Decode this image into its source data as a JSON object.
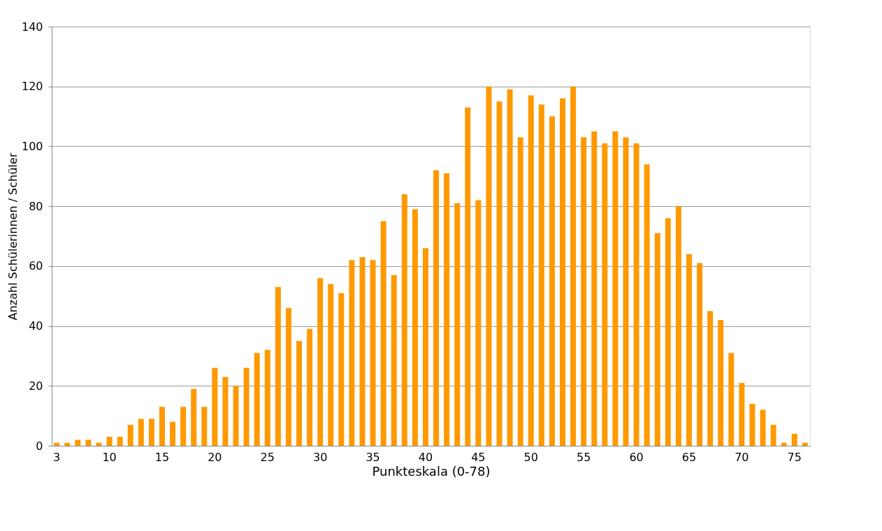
{
  "chart_data": {
    "type": "bar",
    "xlabel": "Punkteskala (0-78)",
    "ylabel": "Anzahl Schülerinnen / Schüler",
    "categories": [
      "3",
      null,
      null,
      null,
      null,
      "10",
      null,
      null,
      null,
      null,
      "15",
      null,
      null,
      null,
      null,
      "20",
      null,
      null,
      null,
      null,
      "25",
      null,
      null,
      null,
      null,
      "30",
      null,
      null,
      null,
      null,
      "35",
      null,
      null,
      null,
      null,
      "40",
      null,
      null,
      null,
      null,
      "45",
      null,
      null,
      null,
      null,
      "50",
      null,
      null,
      null,
      null,
      "55",
      null,
      null,
      null,
      null,
      "60",
      null,
      null,
      null,
      null,
      "65",
      null,
      null,
      null,
      null,
      "70",
      null,
      null,
      null,
      null,
      "75",
      null
    ],
    "values": [
      1,
      1,
      2,
      2,
      1,
      3,
      3,
      7,
      9,
      9,
      13,
      8,
      13,
      19,
      13,
      26,
      23,
      20,
      26,
      31,
      32,
      53,
      46,
      35,
      39,
      56,
      54,
      51,
      62,
      63,
      62,
      75,
      57,
      84,
      79,
      66,
      92,
      91,
      81,
      113,
      82,
      120,
      115,
      119,
      103,
      117,
      114,
      110,
      116,
      120,
      103,
      105,
      101,
      105,
      103,
      101,
      94,
      71,
      76,
      80,
      64,
      61,
      45,
      42,
      31,
      21,
      14,
      12,
      7,
      1,
      4,
      1
    ],
    "color": "#ff9900",
    "ylim": [
      0,
      140
    ],
    "yticks": [
      0,
      20,
      40,
      60,
      80,
      100,
      120,
      140
    ],
    "grid": "y"
  }
}
